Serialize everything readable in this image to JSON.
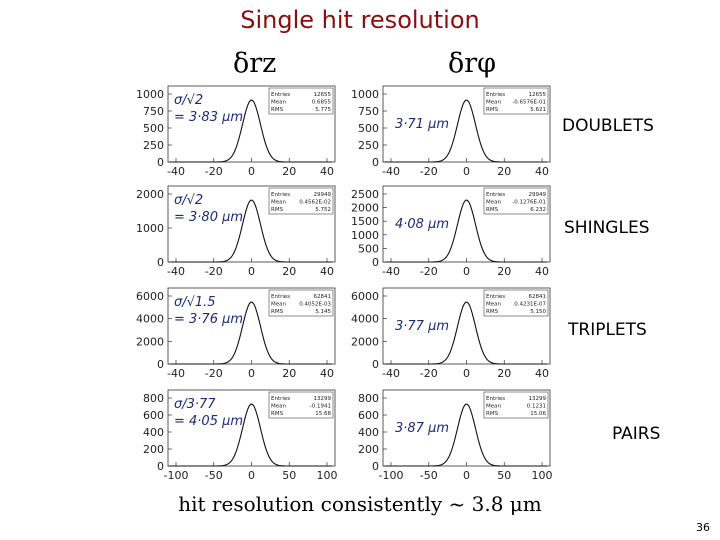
{
  "title": "Single hit resolution",
  "columns": {
    "left": "δrz",
    "right": "δrφ"
  },
  "footer": "hit resolution consistently ~ 3.8 μm",
  "slide_number": "36",
  "rows": [
    {
      "label": "DOUBLETS",
      "left": {
        "note_lines": [
          "σ/√2",
          "= 3·83 μm"
        ],
        "stats": {
          "Entries": "12655",
          "Mean": "0.6855",
          "RMS": "5.775"
        },
        "y_ticks": [
          "0",
          "250",
          "500",
          "750",
          "1000"
        ],
        "x_ticks": [
          "-40",
          "-20",
          "0",
          "20",
          "40"
        ]
      },
      "right": {
        "note_lines": [
          "3·71 μm"
        ],
        "stats": {
          "Entries": "12655",
          "Mean": "-0.6576E-01",
          "RMS": "5.621"
        },
        "y_ticks": [
          "0",
          "250",
          "500",
          "750",
          "1000"
        ],
        "x_ticks": [
          "-40",
          "-20",
          "0",
          "20",
          "40"
        ]
      }
    },
    {
      "label": "SHINGLES",
      "left": {
        "note_lines": [
          "σ/√2",
          "= 3·80 μm"
        ],
        "stats": {
          "Entries": "29949",
          "Mean": "0.4562E-02",
          "RMS": "5.752"
        },
        "y_ticks": [
          "0",
          "1000",
          "2000"
        ],
        "x_ticks": [
          "-40",
          "-20",
          "0",
          "20",
          "40"
        ]
      },
      "right": {
        "note_lines": [
          "4·08 μm"
        ],
        "stats": {
          "Entries": "29949",
          "Mean": "-0.1276E-01",
          "RMS": "6.232"
        },
        "y_ticks": [
          "0",
          "500",
          "1000",
          "1500",
          "2000",
          "2500"
        ],
        "x_ticks": [
          "-40",
          "-20",
          "0",
          "20",
          "40"
        ]
      }
    },
    {
      "label": "TRIPLETS",
      "left": {
        "note_lines": [
          "σ/√1.5",
          "= 3·76 μm"
        ],
        "stats": {
          "Entries": "62841",
          "Mean": "0.4052E-03",
          "RMS": "5.145"
        },
        "y_ticks": [
          "0",
          "2000",
          "4000",
          "6000"
        ],
        "x_ticks": [
          "-40",
          "-20",
          "0",
          "20",
          "40"
        ]
      },
      "right": {
        "note_lines": [
          "3·77 μm"
        ],
        "stats": {
          "Entries": "62841",
          "Mean": "0.4231E-07",
          "RMS": "5.150"
        },
        "y_ticks": [
          "0",
          "2000",
          "4000",
          "6000"
        ],
        "x_ticks": [
          "-40",
          "-20",
          "0",
          "20",
          "40"
        ]
      }
    },
    {
      "label": "PAIRS",
      "left": {
        "note_lines": [
          "σ/3·77",
          "= 4·05 μm"
        ],
        "stats": {
          "Entries": "13299",
          "Mean": "-0.1941",
          "RMS": "15.68"
        },
        "y_ticks": [
          "0",
          "200",
          "400",
          "600",
          "800"
        ],
        "x_ticks": [
          "-100",
          "-50",
          "0",
          "50",
          "100"
        ]
      },
      "right": {
        "note_lines": [
          "3·87 μm"
        ],
        "stats": {
          "Entries": "13299",
          "Mean": "0.1231",
          "RMS": "15.06"
        },
        "y_ticks": [
          "0",
          "200",
          "400",
          "600",
          "800"
        ],
        "x_ticks": [
          "-100",
          "-50",
          "0",
          "50",
          "100"
        ]
      }
    }
  ]
}
